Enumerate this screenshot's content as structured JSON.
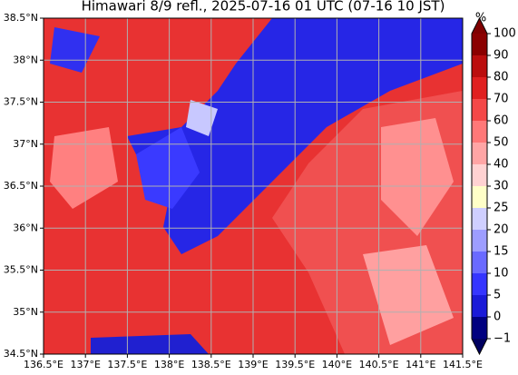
{
  "map": {
    "title": "Himawari 8/9 refl., 2025-07-16 01 UTC (07-16 10 JST)",
    "lon_ticks": [
      {
        "value": 136.5,
        "label": "136.5°E"
      },
      {
        "value": 137,
        "label": "137°E"
      },
      {
        "value": 137.5,
        "label": "137.5°E"
      },
      {
        "value": 138,
        "label": "138°E"
      },
      {
        "value": 138.5,
        "label": "138.5°E"
      },
      {
        "value": 139,
        "label": "139°E"
      },
      {
        "value": 139.5,
        "label": "139.5°E"
      },
      {
        "value": 140,
        "label": "140°E"
      },
      {
        "value": 140.5,
        "label": "140.5°E"
      },
      {
        "value": 141,
        "label": "141°E"
      },
      {
        "value": 141.5,
        "label": "141.5°E"
      }
    ],
    "lat_ticks": [
      {
        "value": 34.5,
        "label": "34.5°N"
      },
      {
        "value": 35,
        "label": "35°N"
      },
      {
        "value": 35.5,
        "label": "35.5°N"
      },
      {
        "value": 36,
        "label": "36°N"
      },
      {
        "value": 36.5,
        "label": "36.5°N"
      },
      {
        "value": 37,
        "label": "37°N"
      },
      {
        "value": 37.5,
        "label": "37.5°N"
      },
      {
        "value": 38,
        "label": "38°N"
      },
      {
        "value": 38.5,
        "label": "38.5°N"
      }
    ],
    "xlim": [
      136.5,
      141.5
    ],
    "ylim": [
      34.5,
      38.5
    ],
    "grid": true,
    "colorbar": {
      "unit": "%",
      "levels": [
        {
          "value": -1,
          "label": "−1"
        },
        0,
        5,
        10,
        15,
        20,
        25,
        30,
        40,
        50,
        60,
        70,
        80,
        90,
        100
      ],
      "colors": [
        "#000080",
        "#1a1ad8",
        "#3535ff",
        "#6a6aff",
        "#9d9dff",
        "#cfcfff",
        "#ffffc8",
        "#ffd2d2",
        "#ffa5a5",
        "#ff7878",
        "#f44848",
        "#e02020",
        "#bb0e0e",
        "#8b0000"
      ],
      "extend_colors": [
        "#000060",
        "#800000"
      ]
    }
  }
}
